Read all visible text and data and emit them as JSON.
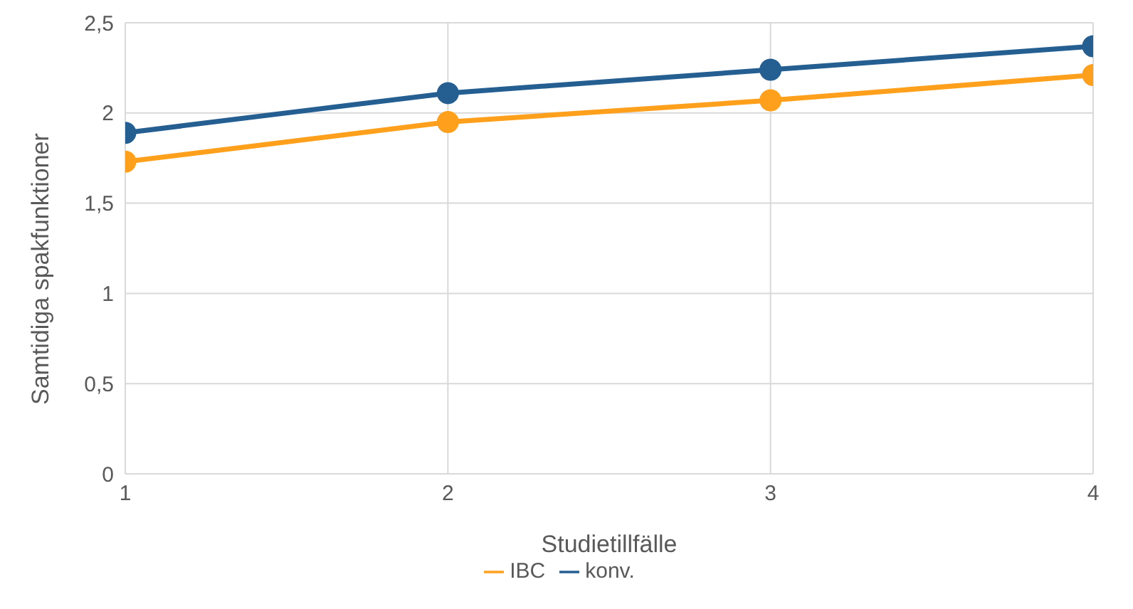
{
  "chart_data": {
    "type": "line",
    "xlabel": "Studietillfälle",
    "ylabel": "Samtidiga spakfunktioner",
    "x": [
      1,
      2,
      3,
      4
    ],
    "series": [
      {
        "name": "konv.",
        "color": "#255e91",
        "values": [
          1.89,
          2.11,
          2.24,
          2.37
        ]
      },
      {
        "name": "IBC",
        "color": "#ffa01c",
        "values": [
          1.73,
          1.95,
          2.07,
          2.21
        ]
      }
    ],
    "xlim": [
      1,
      4
    ],
    "xticks": [
      1,
      2,
      3,
      4
    ],
    "ylim": [
      0,
      2.5
    ],
    "yticks": [
      {
        "value": 0,
        "label": "0"
      },
      {
        "value": 0.5,
        "label": "0,5"
      },
      {
        "value": 1,
        "label": "1"
      },
      {
        "value": 1.5,
        "label": "1,5"
      },
      {
        "value": 2,
        "label": "2"
      },
      {
        "value": 2.5,
        "label": "2,5"
      }
    ],
    "grid": true,
    "legend": "bottom",
    "marker": "circle",
    "line_style": "solid"
  }
}
